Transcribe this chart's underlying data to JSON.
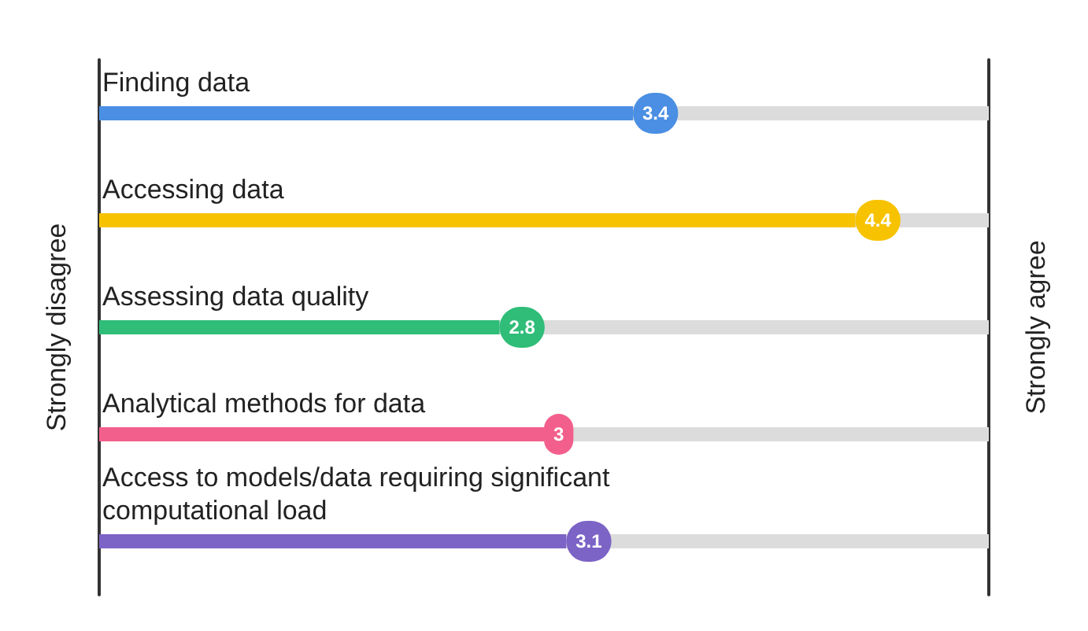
{
  "chart_data": {
    "type": "bar",
    "orientation": "horizontal",
    "categories": [
      "Finding data",
      "Accessing data",
      "Assessing data quality",
      "Analytical methods for data",
      "Access to models/data requiring significant computational load"
    ],
    "values": [
      3.4,
      4.4,
      2.8,
      3,
      3.1
    ],
    "colors": [
      "#4a8fe3",
      "#f7c200",
      "#2fbd78",
      "#f35f8c",
      "#7c63c6"
    ],
    "xlim": [
      1,
      5
    ],
    "annotations": [
      "Strongly disagree",
      "Strongly agree"
    ],
    "data_labels": true
  }
}
